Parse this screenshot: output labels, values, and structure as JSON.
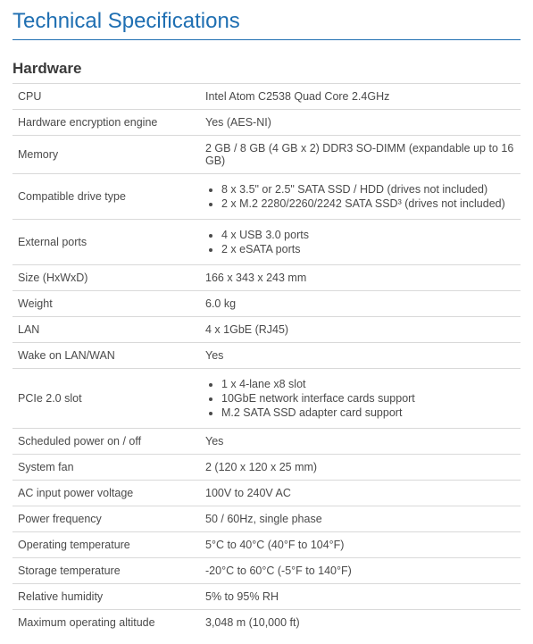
{
  "title": "Technical Specifications",
  "section": "Hardware",
  "colors": {
    "accent": "#1f6fb2",
    "border": "#d9d9d9",
    "text": "#4a4a4a",
    "heading": "#3a3a3a",
    "background": "#ffffff"
  },
  "typography": {
    "title_fontsize": 24,
    "section_fontsize": 17,
    "body_fontsize": 12.5
  },
  "rows": [
    {
      "label": "CPU",
      "type": "text",
      "value": "Intel Atom C2538 Quad Core 2.4GHz"
    },
    {
      "label": "Hardware encryption engine",
      "type": "text",
      "value": "Yes (AES-NI)"
    },
    {
      "label": "Memory",
      "type": "text",
      "value": "2 GB / 8 GB (4 GB x 2) DDR3 SO-DIMM (expandable up to 16 GB)"
    },
    {
      "label": "Compatible drive type",
      "type": "list",
      "items": [
        "8 x 3.5\" or 2.5\" SATA SSD / HDD (drives not included)",
        "2 x M.2 2280/2260/2242 SATA SSD³ (drives not included)"
      ]
    },
    {
      "label": "External ports",
      "type": "list",
      "items": [
        "4 x USB 3.0 ports",
        "2 x eSATA ports"
      ]
    },
    {
      "label": "Size (HxWxD)",
      "type": "text",
      "value": "166 x 343 x 243 mm"
    },
    {
      "label": "Weight",
      "type": "text",
      "value": "6.0 kg"
    },
    {
      "label": "LAN",
      "type": "text",
      "value": "4 x 1GbE (RJ45)"
    },
    {
      "label": "Wake on LAN/WAN",
      "type": "text",
      "value": "Yes"
    },
    {
      "label": "PCIe 2.0 slot",
      "type": "list",
      "items": [
        "1 x 4-lane x8 slot",
        "10GbE network interface cards support",
        "M.2 SATA SSD adapter card support"
      ]
    },
    {
      "label": "Scheduled power on / off",
      "type": "text",
      "value": "Yes"
    },
    {
      "label": "System fan",
      "type": "text",
      "value": "2 (120 x 120 x 25 mm)"
    },
    {
      "label": "AC input power voltage",
      "type": "text",
      "value": "100V to 240V AC"
    },
    {
      "label": "Power frequency",
      "type": "text",
      "value": "50 / 60Hz, single phase"
    },
    {
      "label": "Operating temperature",
      "type": "text",
      "value": "5°C to 40°C (40°F to 104°F)"
    },
    {
      "label": "Storage temperature",
      "type": "text",
      "value": "-20°C to 60°C (-5°F to 140°F)"
    },
    {
      "label": "Relative humidity",
      "type": "text",
      "value": "5% to 95% RH"
    },
    {
      "label": "Maximum operating altitude",
      "type": "text",
      "value": "3,048 m (10,000 ft)"
    }
  ]
}
